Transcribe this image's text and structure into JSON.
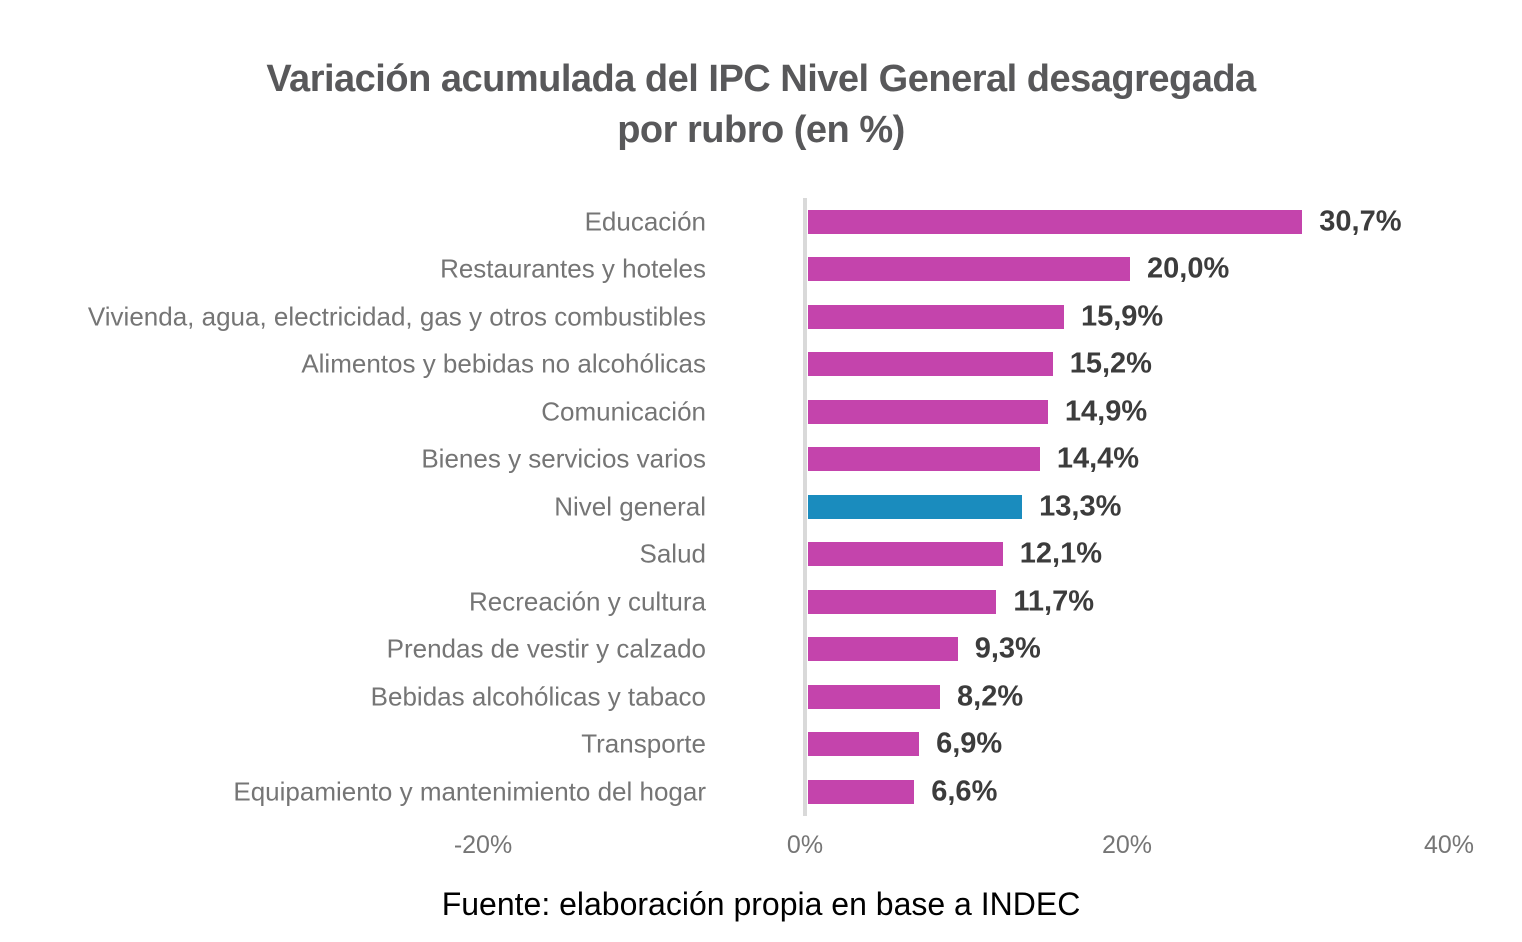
{
  "title": {
    "line1": "Variación acumulada del IPC Nivel General desagregada",
    "line2": "por rubro (en %)",
    "full": "Variación acumulada del IPC Nivel General desagregada por rubro (en %)"
  },
  "source": "Fuente: elaboración propia en base a INDEC",
  "colors": {
    "bar": "#c444ac",
    "highlight_bar": "#1a8cbe",
    "axis_line": "#d9d9d9",
    "title_text": "#58585a",
    "category_text": "#757575",
    "value_text": "#3c3c3c",
    "tick_text": "#757575",
    "source_text": "#000000"
  },
  "chart_data": {
    "type": "bar",
    "orientation": "horizontal",
    "title": "Variación acumulada del IPC Nivel General desagregada por rubro (en %)",
    "categories": [
      "Educación",
      "Restaurantes y hoteles",
      "Vivienda, agua, electricidad, gas y otros combustibles",
      "Alimentos y bebidas no alcohólicas",
      "Comunicación",
      "Bienes y servicios varios",
      "Nivel general",
      "Salud",
      "Recreación y cultura",
      "Prendas de vestir y calzado",
      "Bebidas alcohólicas y tabaco",
      "Transporte",
      "Equipamiento y mantenimiento del hogar"
    ],
    "values": [
      30.7,
      20.0,
      15.9,
      15.2,
      14.9,
      14.4,
      13.3,
      12.1,
      11.7,
      9.3,
      8.2,
      6.9,
      6.6
    ],
    "value_labels": [
      "30,7%",
      "20,0%",
      "15,9%",
      "15,2%",
      "14,9%",
      "14,4%",
      "13,3%",
      "12,1%",
      "11,7%",
      "9,3%",
      "8,2%",
      "6,9%",
      "6,6%"
    ],
    "highlight_index": 6,
    "highlight_category": "Nivel general",
    "x_ticks": [
      "-20%",
      "0%",
      "20%",
      "40%"
    ],
    "x_tick_values": [
      -20,
      0,
      20,
      40
    ],
    "xlim": [
      -20,
      40
    ],
    "grid": false,
    "legend": false,
    "data_labels": true
  }
}
